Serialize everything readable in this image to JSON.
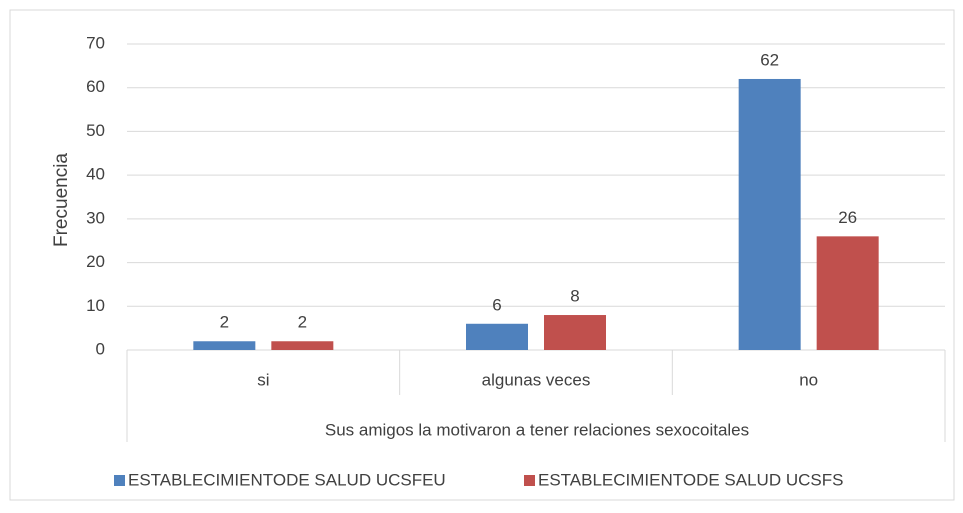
{
  "chart_data": {
    "type": "bar",
    "y_label": "Frecuencia",
    "x_label": "Sus amigos la motivaron a tener relaciones sexocoitales",
    "categories": [
      "si",
      "algunas veces",
      "no"
    ],
    "series": [
      {
        "name": "ESTABLECIMIENTODE SALUD UCSFEU",
        "color": "#4f81bd",
        "values": [
          2,
          6,
          62
        ]
      },
      {
        "name": "ESTABLECIMIENTODE SALUD UCSFS",
        "color": "#c0504d",
        "values": [
          2,
          8,
          26
        ]
      }
    ],
    "ylim": [
      0,
      70
    ],
    "yticks": [
      0,
      10,
      20,
      30,
      40,
      50,
      60,
      70
    ],
    "grid": true,
    "legend": "bottom"
  }
}
